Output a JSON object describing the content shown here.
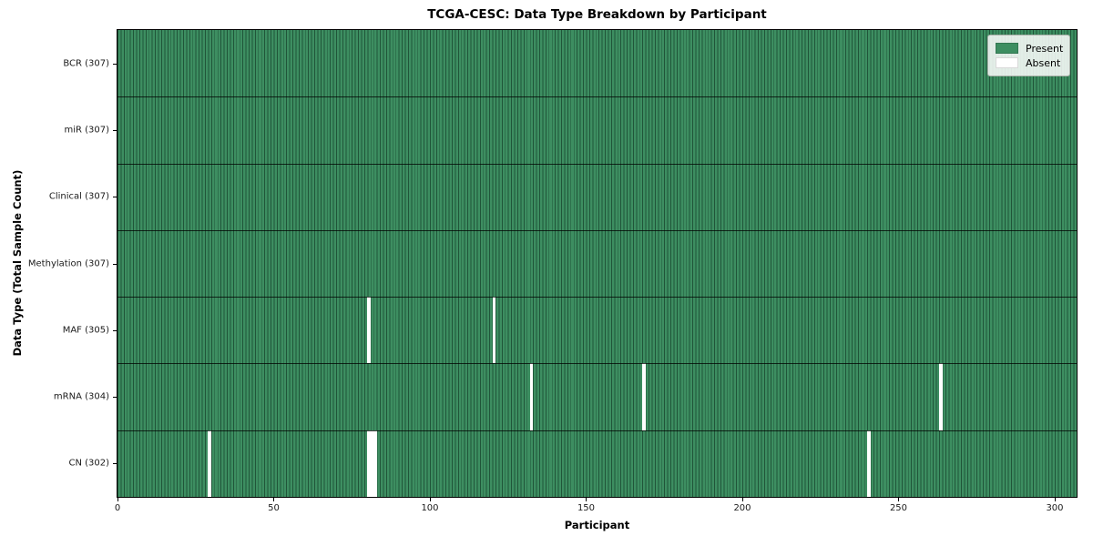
{
  "chart_data": {
    "type": "heatmap",
    "title": "TCGA-CESC: Data Type Breakdown by Participant",
    "xlabel": "Participant",
    "ylabel": "Data Type (Total Sample Count)",
    "n_participants": 307,
    "x_ticks": [
      0,
      50,
      100,
      150,
      200,
      250,
      300
    ],
    "x_range": [
      0,
      307
    ],
    "grid": "cell-borders",
    "rows": [
      {
        "label": "BCR (307)",
        "data_type": "BCR",
        "present_count": 307,
        "absent_participants": []
      },
      {
        "label": "miR (307)",
        "data_type": "miR",
        "present_count": 307,
        "absent_participants": []
      },
      {
        "label": "Clinical (307)",
        "data_type": "Clinical",
        "present_count": 307,
        "absent_participants": []
      },
      {
        "label": "Methylation (307)",
        "data_type": "Methylation",
        "present_count": 307,
        "absent_participants": []
      },
      {
        "label": "MAF (305)",
        "data_type": "MAF",
        "present_count": 305,
        "absent_participants": [
          80,
          120
        ]
      },
      {
        "label": "mRNA (304)",
        "data_type": "mRNA",
        "present_count": 304,
        "absent_participants": [
          132,
          168,
          263
        ]
      },
      {
        "label": "CN (302)",
        "data_type": "CN",
        "present_count": 302,
        "absent_participants": [
          29,
          80,
          81,
          82,
          240
        ]
      }
    ],
    "legend": {
      "position": "upper right",
      "items": [
        {
          "label": "Present",
          "color": "#3d8e61"
        },
        {
          "label": "Absent",
          "color": "#ffffff"
        }
      ]
    },
    "colors": {
      "present": "#3d8e61",
      "absent": "#ffffff",
      "cell_border": "rgba(8,38,24,0.55)",
      "row_border": "rgba(0,0,0,0.75)",
      "axis": "#000000"
    }
  }
}
